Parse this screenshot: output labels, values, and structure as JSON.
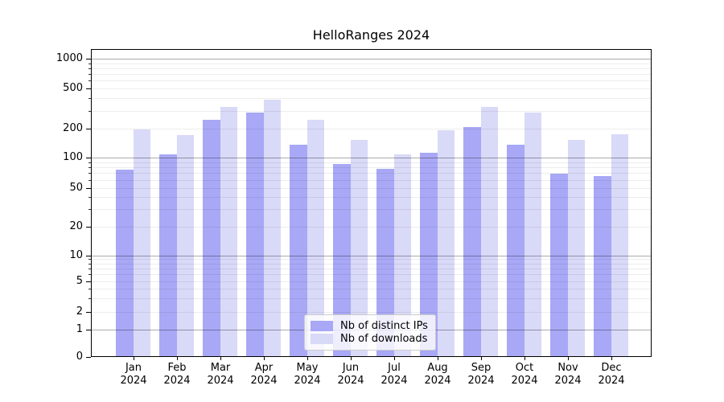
{
  "title": "HelloRanges 2024",
  "chart_data": {
    "type": "bar",
    "categories": [
      "Jan 2024",
      "Feb 2024",
      "Mar 2024",
      "Apr 2024",
      "May 2024",
      "Jun 2024",
      "Jul 2024",
      "Aug 2024",
      "Sep 2024",
      "Oct 2024",
      "Nov 2024",
      "Dec 2024"
    ],
    "series": [
      {
        "name": "Nb of distinct IPs",
        "color": "#a8a8f6",
        "values": [
          76,
          108,
          245,
          289,
          136,
          87,
          77,
          113,
          209,
          136,
          69,
          65
        ]
      },
      {
        "name": "Nb of downloads",
        "color": "#d9d9f8",
        "values": [
          195,
          170,
          325,
          383,
          243,
          153,
          108,
          192,
          327,
          289,
          153,
          176
        ]
      }
    ],
    "xlabel": "",
    "ylabel": "",
    "yscale": "log-like (linear segment between 0 and 1)",
    "ylim": [
      0,
      1230
    ],
    "y_tick_labels": [
      "1000",
      "500",
      "200",
      "100",
      "50",
      "20",
      "10",
      "5",
      "2",
      "1",
      "0"
    ],
    "y_tick_values": [
      1000,
      500,
      200,
      100,
      50,
      20,
      10,
      5,
      2,
      1,
      0
    ],
    "grid": true,
    "legend_position": "lower center"
  },
  "colors": {
    "bar_distinct_ips": "#a8a8f6",
    "bar_downloads": "#d9d9f8",
    "grid_major": "#aaaaaa",
    "grid_minor": "#ededed",
    "spine": "#000000",
    "background": "#ffffff"
  }
}
